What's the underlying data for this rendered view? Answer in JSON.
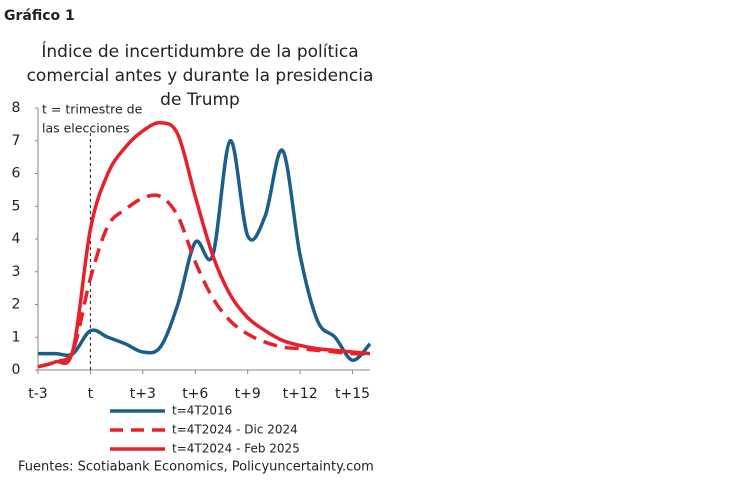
{
  "label": "Gráfico 1",
  "chart_data": {
    "type": "line",
    "title": [
      "Índice de incertidumbre de la política",
      "comercial antes y durante la presidencia",
      "de Trump"
    ],
    "x": [
      -3,
      -2,
      -1,
      0,
      1,
      2,
      3,
      4,
      5,
      6,
      7,
      8,
      9,
      10,
      11,
      12,
      13,
      14,
      15,
      16
    ],
    "xlim": [
      -3,
      16
    ],
    "xticks": [
      {
        "value": -3,
        "label": "t-3"
      },
      {
        "value": 0,
        "label": "t"
      },
      {
        "value": 3,
        "label": "t+3"
      },
      {
        "value": 6,
        "label": "t+6"
      },
      {
        "value": 9,
        "label": "t+9"
      },
      {
        "value": 12,
        "label": "t+12"
      },
      {
        "value": 15,
        "label": "t+15"
      }
    ],
    "ylim": [
      0,
      8
    ],
    "yticks": [
      0,
      1,
      2,
      3,
      4,
      5,
      6,
      7,
      8
    ],
    "grid": false,
    "annotation": {
      "x": 0,
      "text": [
        "t = trimestre de",
        "las elecciones"
      ]
    },
    "series": [
      {
        "name": "t=4T2016",
        "color": "#1a5f8a",
        "dash": false,
        "values": [
          0.5,
          0.5,
          0.5,
          1.2,
          1.0,
          0.8,
          0.55,
          0.7,
          2.0,
          3.9,
          3.5,
          7.0,
          4.1,
          4.7,
          6.7,
          3.5,
          1.5,
          1.0,
          0.3,
          0.8
        ]
      },
      {
        "name": "t=4T2024 - Dic 2024",
        "color": "#e8202a",
        "dash": true,
        "values": [
          0.1,
          0.25,
          0.6,
          2.8,
          4.4,
          4.9,
          5.25,
          5.3,
          4.7,
          3.3,
          2.2,
          1.5,
          1.1,
          0.85,
          0.7,
          0.65,
          0.6,
          0.55,
          0.5,
          0.5
        ]
      },
      {
        "name": "t=4T2024 - Feb 2025",
        "color": "#e8202a",
        "dash": false,
        "values": [
          0.1,
          0.25,
          0.6,
          4.3,
          6.0,
          6.8,
          7.3,
          7.55,
          7.2,
          5.3,
          3.5,
          2.3,
          1.6,
          1.2,
          0.9,
          0.75,
          0.65,
          0.6,
          0.55,
          0.5
        ]
      }
    ],
    "source": "Fuentes: Scotiabank Economics, Policyuncertainty.com"
  }
}
